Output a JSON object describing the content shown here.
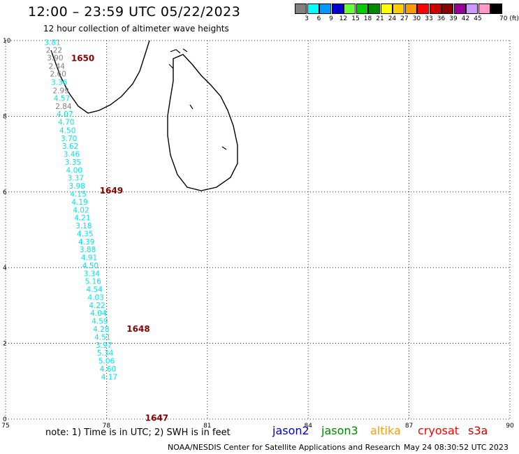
{
  "header": {
    "title": "12:00 – 23:59 UTC 05/22/2023",
    "subtitle": "12 hour collection of altimeter wave heights"
  },
  "legend": {
    "unit": "70 (ft)",
    "items": [
      {
        "label": "3",
        "color": "#808080"
      },
      {
        "label": "6",
        "color": "#00ffff"
      },
      {
        "label": "9",
        "color": "#0099ff"
      },
      {
        "label": "12",
        "color": "#0000cc"
      },
      {
        "label": "15",
        "color": "#66ff33"
      },
      {
        "label": "18",
        "color": "#00cc00"
      },
      {
        "label": "21",
        "color": "#008800"
      },
      {
        "label": "24",
        "color": "#ffff00"
      },
      {
        "label": "27",
        "color": "#ffcc00"
      },
      {
        "label": "30",
        "color": "#ff9900"
      },
      {
        "label": "33",
        "color": "#ff0000"
      },
      {
        "label": "36",
        "color": "#cc0000"
      },
      {
        "label": "39",
        "color": "#880000"
      },
      {
        "label": "42",
        "color": "#990099"
      },
      {
        "label": "45",
        "color": "#cc99ff"
      },
      {
        "label": "",
        "color": "#ff99cc"
      },
      {
        "label": "",
        "color": "#000000"
      }
    ]
  },
  "axes": {
    "x_ticks": [
      "75",
      "78",
      "81",
      "84",
      "87",
      "90"
    ],
    "x_values": [
      75,
      78,
      81,
      84,
      87,
      90
    ],
    "y_ticks": [
      "0",
      "2",
      "4",
      "6",
      "8",
      "10"
    ],
    "y_values": [
      0,
      2,
      4,
      6,
      8,
      10
    ],
    "xlim": [
      75,
      90
    ],
    "ylim": [
      0,
      10
    ],
    "grid": true
  },
  "track": {
    "points": [
      {
        "lat": 9.95,
        "lon": 76.15,
        "swh": "3.81",
        "color": "#00e5ee"
      },
      {
        "lat": 9.75,
        "lon": 76.2,
        "swh": "2.22",
        "color": "#808080"
      },
      {
        "lat": 9.55,
        "lon": 76.23,
        "swh": "3.90",
        "color": "#808080"
      },
      {
        "lat": 9.33,
        "lon": 76.28,
        "swh": "2.44",
        "color": "#808080"
      },
      {
        "lat": 9.12,
        "lon": 76.32,
        "swh": "2.60",
        "color": "#808080"
      },
      {
        "lat": 8.9,
        "lon": 76.35,
        "swh": "3.36",
        "color": "#00e5ee"
      },
      {
        "lat": 8.68,
        "lon": 76.4,
        "swh": "2.99",
        "color": "#808080"
      },
      {
        "lat": 8.48,
        "lon": 76.43,
        "swh": "4.57",
        "color": "#00e5ee"
      },
      {
        "lat": 8.27,
        "lon": 76.48,
        "swh": "2.84",
        "color": "#808080"
      },
      {
        "lat": 8.06,
        "lon": 76.52,
        "swh": "4.07",
        "color": "#00e5ee"
      },
      {
        "lat": 7.85,
        "lon": 76.56,
        "swh": "4.70",
        "color": "#00e5ee"
      },
      {
        "lat": 7.63,
        "lon": 76.6,
        "swh": "4.50",
        "color": "#00e5ee"
      },
      {
        "lat": 7.42,
        "lon": 76.64,
        "swh": "3.70",
        "color": "#00e5ee"
      },
      {
        "lat": 7.21,
        "lon": 76.68,
        "swh": "3.62",
        "color": "#00e5ee"
      },
      {
        "lat": 7.0,
        "lon": 76.72,
        "swh": "3.46",
        "color": "#00e5ee"
      },
      {
        "lat": 6.79,
        "lon": 76.76,
        "swh": "3.35",
        "color": "#00e5ee"
      },
      {
        "lat": 6.58,
        "lon": 76.8,
        "swh": "4.00",
        "color": "#00e5ee"
      },
      {
        "lat": 6.37,
        "lon": 76.84,
        "swh": "3.37",
        "color": "#00e5ee"
      },
      {
        "lat": 6.16,
        "lon": 76.88,
        "swh": "3.98",
        "color": "#00e5ee"
      },
      {
        "lat": 5.95,
        "lon": 76.92,
        "swh": "4.15",
        "color": "#00e5ee"
      },
      {
        "lat": 5.74,
        "lon": 76.96,
        "swh": "4.19",
        "color": "#00e5ee"
      },
      {
        "lat": 5.53,
        "lon": 77.0,
        "swh": "4.02",
        "color": "#00e5ee"
      },
      {
        "lat": 5.32,
        "lon": 77.04,
        "swh": "4.21",
        "color": "#00e5ee"
      },
      {
        "lat": 5.11,
        "lon": 77.08,
        "swh": "3.18",
        "color": "#00e5ee"
      },
      {
        "lat": 4.9,
        "lon": 77.12,
        "swh": "4.35",
        "color": "#00e5ee"
      },
      {
        "lat": 4.69,
        "lon": 77.16,
        "swh": "4.39",
        "color": "#00e5ee"
      },
      {
        "lat": 4.48,
        "lon": 77.2,
        "swh": "3.88",
        "color": "#00e5ee"
      },
      {
        "lat": 4.27,
        "lon": 77.24,
        "swh": "4.91",
        "color": "#00e5ee"
      },
      {
        "lat": 4.06,
        "lon": 77.28,
        "swh": "4.50",
        "color": "#00e5ee"
      },
      {
        "lat": 3.85,
        "lon": 77.32,
        "swh": "3.34",
        "color": "#00e5ee"
      },
      {
        "lat": 3.64,
        "lon": 77.36,
        "swh": "5.16",
        "color": "#00e5ee"
      },
      {
        "lat": 3.43,
        "lon": 77.4,
        "swh": "4.54",
        "color": "#00e5ee"
      },
      {
        "lat": 3.22,
        "lon": 77.44,
        "swh": "4.03",
        "color": "#00e5ee"
      },
      {
        "lat": 3.01,
        "lon": 77.48,
        "swh": "4.22",
        "color": "#00e5ee"
      },
      {
        "lat": 2.8,
        "lon": 77.52,
        "swh": "4.04",
        "color": "#00e5ee"
      },
      {
        "lat": 2.59,
        "lon": 77.56,
        "swh": "4.59",
        "color": "#00e5ee"
      },
      {
        "lat": 2.38,
        "lon": 77.6,
        "swh": "4.28",
        "color": "#00e5ee"
      },
      {
        "lat": 2.17,
        "lon": 77.64,
        "swh": "4.51",
        "color": "#00e5ee"
      },
      {
        "lat": 1.96,
        "lon": 77.68,
        "swh": "3.97",
        "color": "#00e5ee"
      },
      {
        "lat": 1.75,
        "lon": 77.72,
        "swh": "5.34",
        "color": "#00e5ee"
      },
      {
        "lat": 1.54,
        "lon": 77.76,
        "swh": "5.06",
        "color": "#00e5ee"
      },
      {
        "lat": 1.33,
        "lon": 77.8,
        "swh": "4.60",
        "color": "#00e5ee"
      },
      {
        "lat": 1.12,
        "lon": 77.84,
        "swh": "4.17",
        "color": "#00e5ee"
      }
    ],
    "times": [
      {
        "label": "1650",
        "lat": 9.55,
        "lon": 76.95
      },
      {
        "label": "1649",
        "lat": 6.05,
        "lon": 77.8
      },
      {
        "label": "1648",
        "lat": 2.4,
        "lon": 78.6
      },
      {
        "label": "1647",
        "lat": 0.05,
        "lon": 79.15
      }
    ],
    "time_color": "#880000"
  },
  "footer": {
    "note": "note: 1) Time is in UTC; 2) SWH is in feet",
    "satellites": [
      {
        "label": "jason2",
        "color": "#0000cc"
      },
      {
        "label": "jason3",
        "color": "#008800"
      },
      {
        "label": "altika",
        "color": "#ff9900"
      },
      {
        "label": "cryosat",
        "color": "#ff0000"
      },
      {
        "label": "s3a",
        "color": "#cc0000"
      }
    ],
    "credit": "NOAA/NESDIS Center for Satellite Applications and Research",
    "timestamp": "May 24 08:30:52 UTC 2023"
  }
}
